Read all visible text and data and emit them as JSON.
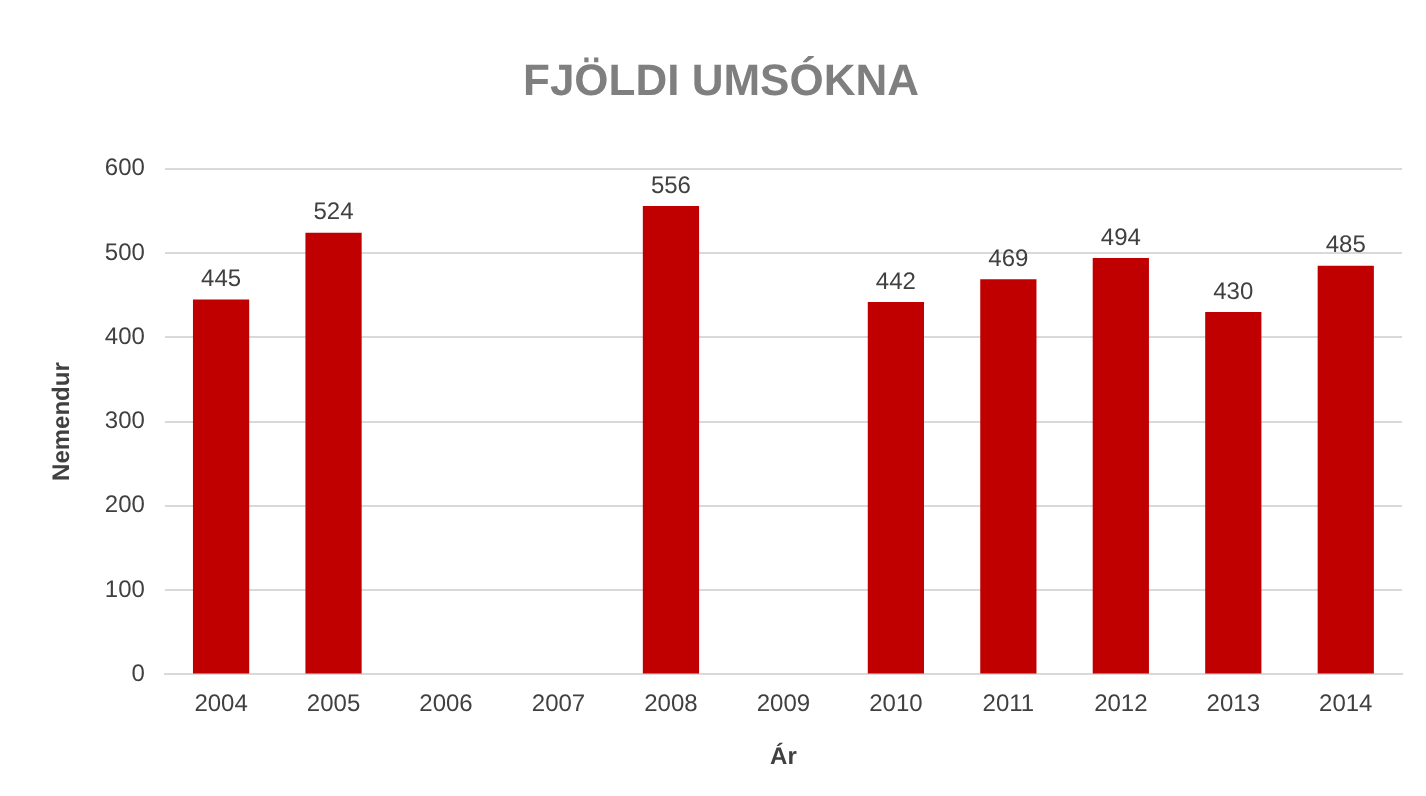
{
  "chart_data": {
    "type": "bar",
    "title": "FJÖLDI UMSÓKNA",
    "xlabel": "Ár",
    "ylabel": "Nemendur",
    "categories": [
      "2004",
      "2005",
      "2006",
      "2007",
      "2008",
      "2009",
      "2010",
      "2011",
      "2012",
      "2013",
      "2014"
    ],
    "values": [
      445,
      524,
      null,
      null,
      556,
      null,
      442,
      469,
      494,
      430,
      485
    ],
    "color": "#c00000",
    "ylim": [
      0,
      600
    ],
    "yticks": [
      0,
      100,
      200,
      300,
      400,
      500,
      600
    ],
    "grid": "y",
    "data_labels": true,
    "legend": false
  }
}
